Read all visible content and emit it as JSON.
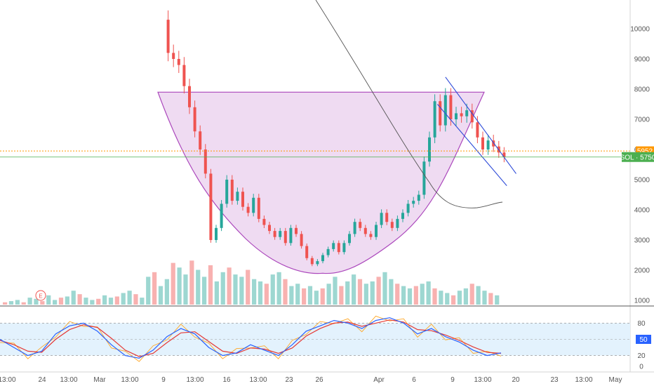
{
  "chart_data": {
    "type": "candlestick",
    "symbol": "SOL",
    "price_axis": {
      "ticks": [
        "10000",
        "9000",
        "8000",
        "7000",
        "6000",
        "5000",
        "4000",
        "3000",
        "2000",
        "1000"
      ],
      "ylim": [
        800,
        10800
      ]
    },
    "time_axis": {
      "ticks": [
        "13:00",
        "24",
        "13:00",
        "Mar",
        "13:00",
        "9",
        "13:00",
        "16",
        "13:00",
        "23",
        "26",
        "Apr",
        "6",
        "9",
        "13:00",
        "20",
        "23",
        "13:00",
        "May"
      ]
    },
    "price_labels": {
      "orange_line": "5952",
      "sol_label": "SOL · 5750"
    },
    "ohlc_close_path": [
      [
        9,
        10300
      ],
      [
        9.4,
        9200
      ],
      [
        9.8,
        9000
      ],
      [
        10.2,
        8800
      ],
      [
        10.6,
        8100
      ],
      [
        11,
        7400
      ],
      [
        11.4,
        6600
      ],
      [
        11.8,
        6000
      ],
      [
        12.2,
        5200
      ],
      [
        12.6,
        3000
      ],
      [
        13,
        3400
      ],
      [
        13.4,
        4200
      ],
      [
        13.8,
        5000
      ],
      [
        14.2,
        4300
      ],
      [
        14.6,
        4600
      ],
      [
        15,
        4100
      ],
      [
        15.4,
        3900
      ],
      [
        15.8,
        4400
      ],
      [
        16.2,
        3700
      ],
      [
        16.6,
        3500
      ],
      [
        17,
        3300
      ],
      [
        17.4,
        3100
      ],
      [
        17.8,
        3300
      ],
      [
        18.2,
        2900
      ],
      [
        18.6,
        3400
      ],
      [
        19,
        3200
      ],
      [
        19.4,
        2800
      ],
      [
        19.8,
        2400
      ],
      [
        20.2,
        2200
      ],
      [
        20.6,
        2300
      ],
      [
        21,
        2500
      ],
      [
        21.4,
        2700
      ],
      [
        21.8,
        2900
      ],
      [
        22.2,
        2600
      ],
      [
        22.6,
        2900
      ],
      [
        23,
        3200
      ],
      [
        23.4,
        3600
      ],
      [
        23.8,
        3400
      ],
      [
        24.2,
        3200
      ],
      [
        24.6,
        3100
      ],
      [
        25,
        3500
      ],
      [
        25.4,
        3900
      ],
      [
        25.8,
        3600
      ],
      [
        26.2,
        3400
      ],
      [
        26.6,
        3700
      ],
      [
        27,
        3900
      ],
      [
        27.4,
        4200
      ],
      [
        27.8,
        4300
      ],
      [
        28.2,
        4500
      ],
      [
        28.6,
        5600
      ],
      [
        29,
        6400
      ],
      [
        29.4,
        7600
      ],
      [
        29.8,
        6800
      ],
      [
        30.2,
        7800
      ],
      [
        30.6,
        7000
      ],
      [
        31,
        7200
      ],
      [
        31.4,
        7100
      ],
      [
        31.8,
        7300
      ],
      [
        32.2,
        6900
      ],
      [
        32.6,
        6400
      ],
      [
        33,
        6000
      ],
      [
        33.4,
        6300
      ],
      [
        33.8,
        6100
      ],
      [
        34.2,
        5900
      ],
      [
        34.6,
        5750
      ]
    ],
    "volume": [
      1100,
      1150,
      1200,
      1100,
      1300,
      1250,
      1150,
      1400,
      1200,
      1300,
      1350,
      1600,
      1450,
      1300,
      1200,
      1250,
      1400,
      1300,
      1350,
      1500,
      1600,
      1450,
      1300,
      2200,
      2400,
      1800,
      2100,
      2800,
      2600,
      2300,
      2900,
      2500,
      2200,
      2700,
      2000,
      2400,
      2600,
      2300,
      2200,
      2500,
      2100,
      2000,
      1900,
      2300,
      2400,
      2100,
      1800,
      1900,
      1700,
      1800,
      1600,
      1700,
      1900,
      2200,
      1800,
      2000,
      2300,
      2100,
      1900,
      2000,
      2200,
      2400,
      2100,
      1900,
      1800,
      1700,
      1800,
      1900,
      2000,
      1700,
      1600,
      1500,
      1400,
      1600,
      1700,
      1900,
      1800,
      1600,
      1500,
      1400
    ],
    "stoch_rsi": {
      "levels": [
        "80",
        "50",
        "20",
        "0"
      ],
      "current": "50",
      "k": [
        50,
        35,
        20,
        28,
        60,
        75,
        80,
        65,
        40,
        20,
        15,
        30,
        55,
        70,
        60,
        35,
        20,
        25,
        40,
        30,
        20,
        40,
        65,
        75,
        85,
        80,
        70,
        85,
        90,
        80,
        60,
        70,
        55,
        45,
        30,
        20,
        25
      ],
      "d": [
        48,
        40,
        28,
        26,
        50,
        68,
        77,
        72,
        52,
        30,
        18,
        24,
        44,
        62,
        64,
        46,
        28,
        24,
        34,
        32,
        24,
        34,
        56,
        70,
        80,
        82,
        74,
        80,
        86,
        82,
        68,
        66,
        58,
        48,
        36,
        26,
        24
      ]
    },
    "cup_pattern": {
      "rim_price": 7900,
      "bottom_price": 1900
    },
    "channel": {
      "upper": [
        [
          30.2,
          8400
        ],
        [
          35.5,
          5200
        ]
      ],
      "lower": [
        [
          29.6,
          7500
        ],
        [
          34.8,
          4800
        ]
      ]
    }
  },
  "volume_marker": "E",
  "colors": {
    "up": "#26a69a",
    "down": "#ef5350",
    "cup_fill": "#e1bee7",
    "cup_stroke": "#ab47bc",
    "channel": "#2e4bd8",
    "orange": "#ff9800",
    "sol_badge": "#4caf50",
    "stoch_k": "#2962ff",
    "stoch_d": "#e53935",
    "stoch_band": "#e3f2fd",
    "rsi_orange": "#ffa726"
  }
}
